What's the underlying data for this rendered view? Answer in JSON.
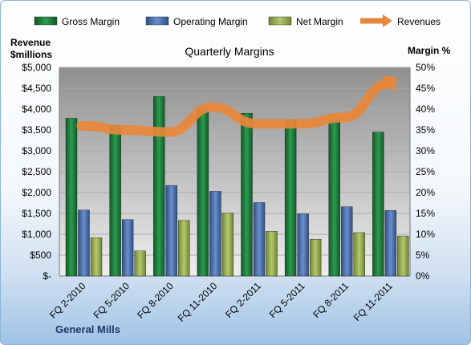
{
  "chart_data": {
    "type": "bar",
    "title": "Quarterly Margins",
    "footer": "General Mills",
    "ylabel_left_line1": "Revenue",
    "ylabel_left_line2": "$millions",
    "ylabel_right": "Margin %",
    "categories": [
      "FQ 2-2010",
      "FQ 5-2010",
      "FQ 8-2010",
      "FQ 11-2010",
      "FQ 2-2011",
      "FQ 5-2011",
      "FQ 8-2011",
      "FQ 11-2011"
    ],
    "left_axis": {
      "ylim": [
        0,
        5000
      ],
      "ticks": [
        "$-",
        "$500",
        "$1,000",
        "$1,500",
        "$2,000",
        "$2,500",
        "$3,000",
        "$3,500",
        "$4,000",
        "$4,500",
        "$5,000"
      ]
    },
    "right_axis": {
      "ylim": [
        0,
        50
      ],
      "ticks": [
        "0%",
        "5%",
        "10%",
        "15%",
        "20%",
        "25%",
        "30%",
        "35%",
        "40%",
        "45%",
        "50%"
      ]
    },
    "series": [
      {
        "name": "Gross Margin",
        "axis": "right",
        "color": "#1e7a3c",
        "values": [
          37.8,
          36.0,
          43.0,
          40.0,
          39.0,
          37.5,
          37.3,
          34.5
        ]
      },
      {
        "name": "Operating Margin",
        "axis": "right",
        "color": "#4a6fa8",
        "values": [
          15.8,
          13.5,
          21.7,
          20.3,
          17.6,
          14.9,
          16.6,
          15.7
        ]
      },
      {
        "name": "Net Margin",
        "axis": "right",
        "color": "#94ab4c",
        "values": [
          9.2,
          6.0,
          13.3,
          15.1,
          10.7,
          8.8,
          10.4,
          9.6
        ]
      },
      {
        "name": "Revenues",
        "axis": "left",
        "type": "line",
        "color": "#e8873a",
        "values": [
          3600,
          3500,
          3450,
          4050,
          3650,
          3650,
          3800,
          4600
        ]
      }
    ],
    "grid": true,
    "legend_position": "top"
  }
}
